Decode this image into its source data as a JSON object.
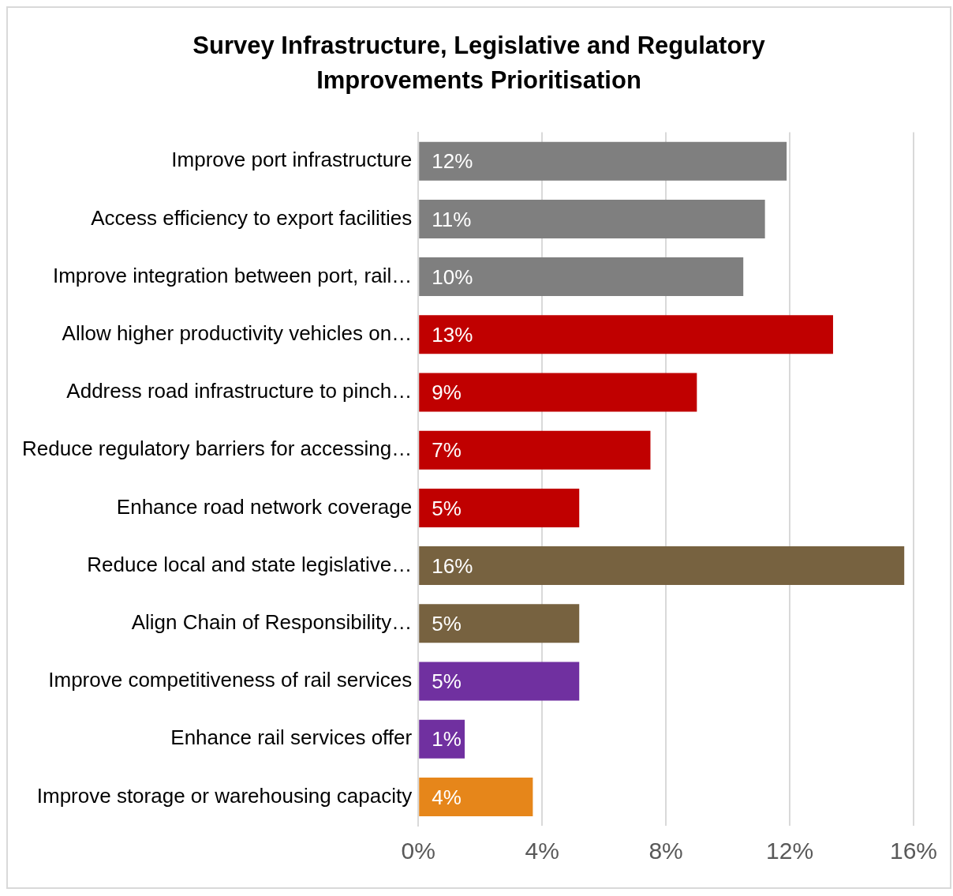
{
  "chart_data": {
    "type": "bar",
    "orientation": "horizontal",
    "title": "Survey Infrastructure, Legislative and Regulatory Improvements Prioritisation",
    "categories": [
      "Improve port infrastructure",
      "Access efficiency to export facilities",
      "Improve integration between port, rail…",
      "Allow higher productivity vehicles on…",
      "Address road infrastructure to pinch…",
      "Reduce regulatory barriers for accessing…",
      "Enhance road network coverage",
      "Reduce local and state legislative…",
      "Align Chain of Responsibility…",
      "Improve competitiveness of rail services",
      "Enhance rail services offer",
      "Improve storage or warehousing capacity"
    ],
    "values": [
      11.9,
      11.2,
      10.5,
      13.4,
      9.0,
      7.5,
      5.2,
      15.7,
      5.2,
      5.2,
      1.5,
      3.7
    ],
    "colors": [
      "#7f7f7f",
      "#7f7f7f",
      "#7f7f7f",
      "#c00000",
      "#c00000",
      "#c00000",
      "#c00000",
      "#776240",
      "#776240",
      "#7030a0",
      "#7030a0",
      "#e6861a"
    ],
    "value_labels": [
      "12%",
      "11%",
      "10%",
      "13%",
      "9%",
      "7%",
      "5%",
      "16%",
      "5%",
      "5%",
      "1%",
      "4%"
    ],
    "xlim": [
      0,
      16
    ],
    "xticks": [
      {
        "value": 0,
        "label": "0%"
      },
      {
        "value": 4,
        "label": "4%"
      },
      {
        "value": 8,
        "label": "8%"
      },
      {
        "value": 12,
        "label": "12%"
      },
      {
        "value": 16,
        "label": "16%"
      }
    ],
    "grid": "x"
  }
}
